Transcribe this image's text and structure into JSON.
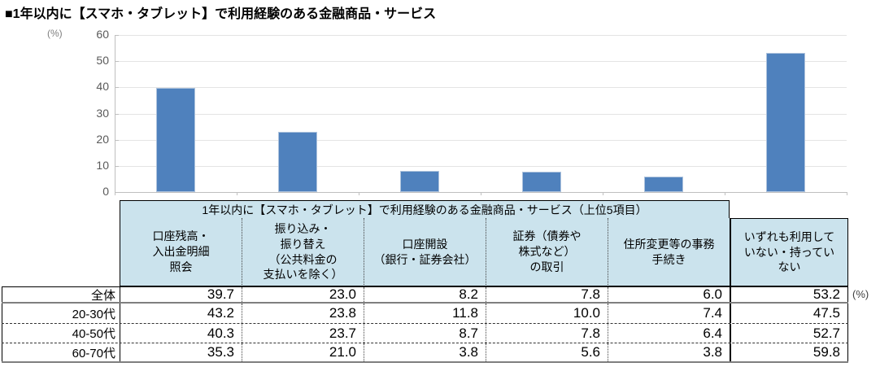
{
  "report_title": "■1年以内に【スマホ・タブレット】で利用経験のある金融商品・サービス",
  "chart_data": {
    "type": "bar",
    "title": "1年以内に【スマホ・タブレット】で利用経験のある金融商品・サービス",
    "y_unit": "(%)",
    "ylabel": "(%)",
    "xlabel": "",
    "ylim": [
      0,
      60
    ],
    "yticks": [
      0,
      10,
      20,
      30,
      40,
      50,
      60
    ],
    "grid": true,
    "legend": "none",
    "bar_color": "#4f81bd",
    "categories": [
      "口座残高・入出金明細照会",
      "振り込み・振り替え（公共料金の支払いを除く）",
      "口座開設（銀行・証券会社）",
      "証券（債券や株式など）の取引",
      "住所変更等の事務手続き",
      "いずれも利用していない・持っていない"
    ],
    "values": [
      39.7,
      23.0,
      8.2,
      7.8,
      6.0,
      53.2
    ],
    "plotted_series": "全体",
    "series": [
      {
        "name": "全体",
        "values": [
          39.7,
          23.0,
          8.2,
          7.8,
          6.0,
          53.2
        ]
      },
      {
        "name": "20-30代",
        "values": [
          43.2,
          23.8,
          11.8,
          10.0,
          7.4,
          47.5
        ]
      },
      {
        "name": "40-50代",
        "values": [
          40.3,
          23.7,
          8.7,
          7.8,
          6.4,
          52.7
        ]
      },
      {
        "name": "60-70代",
        "values": [
          35.3,
          21.0,
          3.8,
          5.6,
          3.8,
          59.8
        ]
      }
    ]
  },
  "table": {
    "group_header": "1年以内に【スマホ・タブレット】で利用経験のある金融商品・サービス（上位5項目）",
    "unit_note": "(%)",
    "columns": [
      "口座残高・\n入出金明細\n照会",
      "振り込み・\n振り替え\n（公共料金の\n支払いを除く）",
      "口座開設\n（銀行・証券会社）",
      "証券（債券や\n株式など）\nの取引",
      "住所変更等の事務\n手続き",
      "いずれも利用して\nいない・持ってい\nない"
    ],
    "rows": [
      {
        "label": "全体",
        "values": [
          "39.7",
          "23.0",
          "8.2",
          "7.8",
          "6.0",
          "53.2"
        ]
      },
      {
        "label": "20-30代",
        "values": [
          "43.2",
          "23.8",
          "11.8",
          "10.0",
          "7.4",
          "47.5"
        ]
      },
      {
        "label": "40-50代",
        "values": [
          "40.3",
          "23.7",
          "8.7",
          "7.8",
          "6.4",
          "52.7"
        ]
      },
      {
        "label": "60-70代",
        "values": [
          "35.3",
          "21.0",
          "3.8",
          "5.6",
          "3.8",
          "59.8"
        ]
      }
    ]
  }
}
